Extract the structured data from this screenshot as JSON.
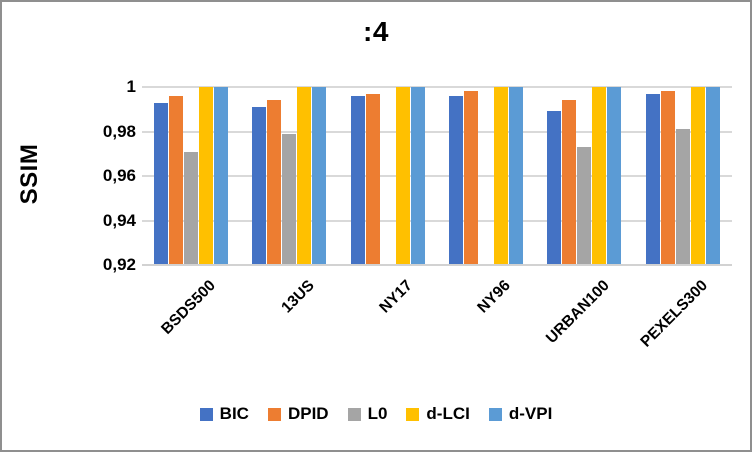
{
  "chart_data": {
    "type": "bar",
    "title": ":4",
    "ylabel": "SSIM",
    "categories": [
      "BSDS500",
      "13US",
      "NY17",
      "NY96",
      "URBAN100",
      "PEXELS300"
    ],
    "series": [
      {
        "name": "BIC",
        "color": "#4472C4",
        "values": [
          0.993,
          0.991,
          0.996,
          0.996,
          0.989,
          0.997
        ]
      },
      {
        "name": "DPID",
        "color": "#ED7D31",
        "values": [
          0.996,
          0.994,
          0.997,
          0.998,
          0.994,
          0.998
        ]
      },
      {
        "name": "L0",
        "color": "#A5A5A5",
        "values": [
          0.971,
          0.979,
          null,
          null,
          0.973,
          0.981
        ]
      },
      {
        "name": "d-LCI",
        "color": "#FFC000",
        "values": [
          1.0,
          1.0,
          1.0,
          1.0,
          1.0,
          1.0
        ]
      },
      {
        "name": "d-VPI",
        "color": "#5B9BD5",
        "values": [
          1.0,
          1.0,
          1.0,
          1.0,
          1.0,
          1.0
        ]
      }
    ],
    "ylim": [
      0.92,
      1.0
    ],
    "yticks": [
      {
        "label": "1",
        "value": 1.0
      },
      {
        "label": "0,98",
        "value": 0.98
      },
      {
        "label": "0,96",
        "value": 0.96
      },
      {
        "label": "0,94",
        "value": 0.94
      },
      {
        "label": "0,92",
        "value": 0.92
      }
    ],
    "grid": true,
    "gridline_color": "#D9D9D9",
    "legend_position": "bottom"
  }
}
